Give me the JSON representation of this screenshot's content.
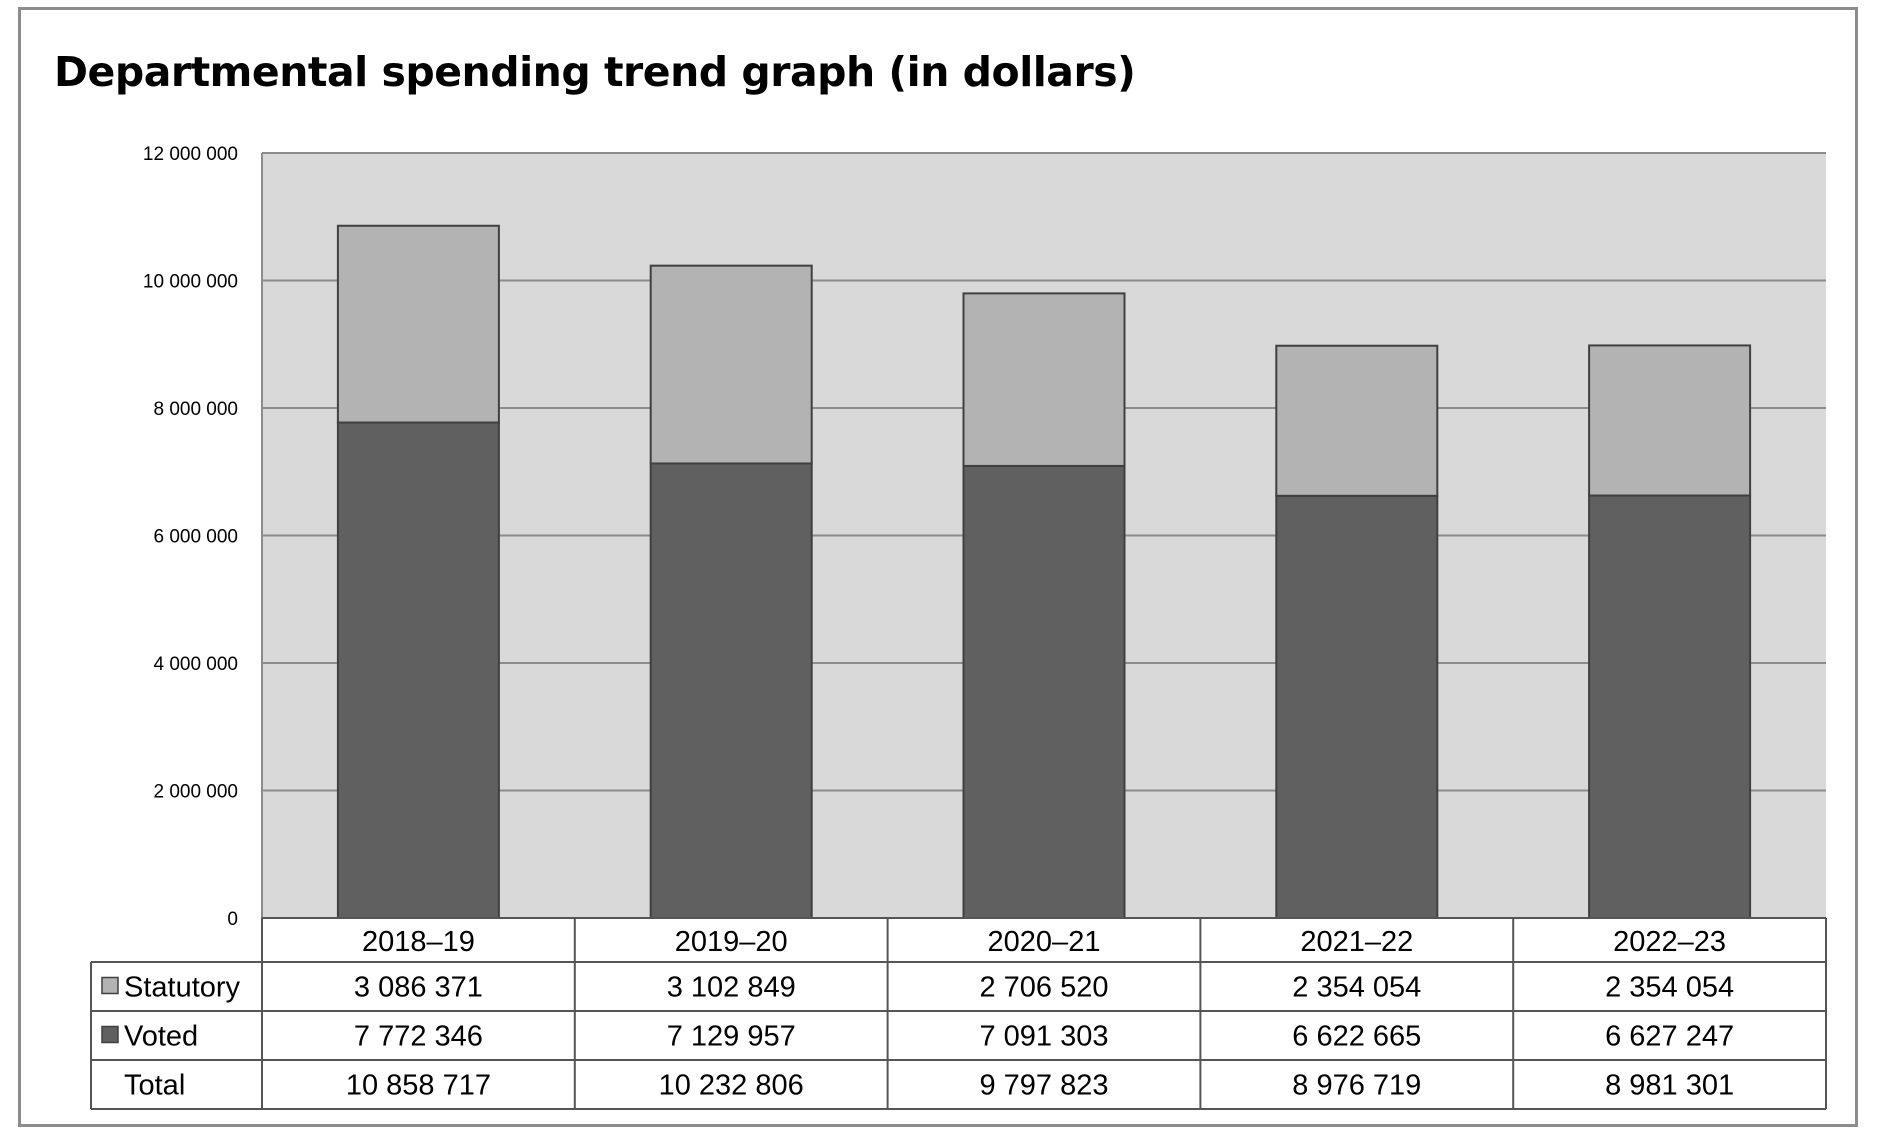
{
  "chart_data": {
    "type": "bar",
    "stacked": true,
    "title": "Departmental spending trend graph (in dollars)",
    "categories": [
      "2018–19",
      "2019–20",
      "2020–21",
      "2021–22",
      "2022–23"
    ],
    "series": [
      {
        "name": "Statutory",
        "values": [
          3086371,
          3102849,
          2706520,
          2354054,
          2354054
        ],
        "labels": [
          "3 086 371",
          "3 102 849",
          "2 706 520",
          "2 354 054",
          "2 354 054"
        ],
        "color": "#b3b3b3"
      },
      {
        "name": "Voted",
        "values": [
          7772346,
          7129957,
          7091303,
          6622665,
          6627247
        ],
        "labels": [
          "7 772 346",
          "7 129 957",
          "7 091 303",
          "6 622 665",
          "6 627 247"
        ],
        "color": "#606060"
      }
    ],
    "total": {
      "name": "Total",
      "labels": [
        "10 858 717",
        "10 232 806",
        "9 797 823",
        "8 976 719",
        "8 981 301"
      ]
    },
    "ylim": [
      0,
      12000000
    ],
    "yticks": [
      "0",
      "2 000 000",
      "4 000 000",
      "6 000 000",
      "8 000 000",
      "10 000 000",
      "12 000 000"
    ],
    "grid": true,
    "plot_background": "#d9d9d9",
    "legend": "data-table-below",
    "xlabel": "",
    "ylabel": ""
  }
}
